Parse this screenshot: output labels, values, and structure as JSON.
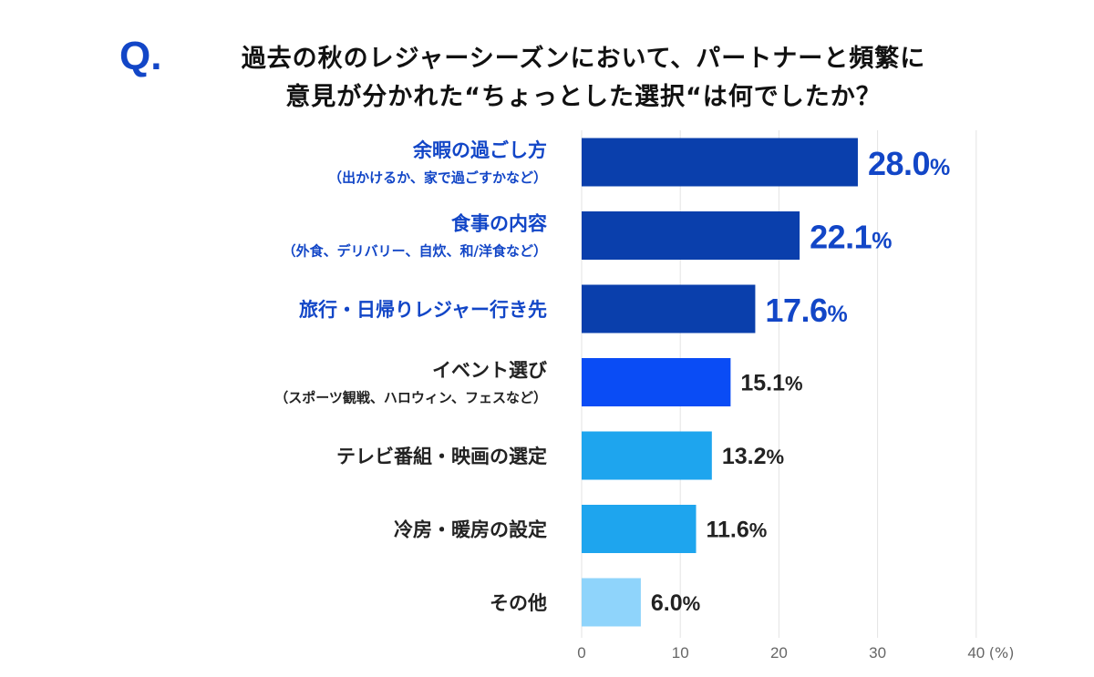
{
  "question": {
    "mark": "Q.",
    "line1": "過去の秋のレジャーシーズンにおいて、パートナーと頻繁に",
    "line2": "意見が分かれた“ちょっとした選択“は何でしたか？"
  },
  "chart_data": {
    "type": "bar",
    "orientation": "horizontal",
    "categories": [
      {
        "label": "余暇の過ごし方",
        "sub": "（出かけるか、家で過ごすかなど）",
        "highlight": true,
        "color": "#0a3fac"
      },
      {
        "label": "食事の内容",
        "sub": "（外食、デリバリー、自炊、和/洋食など）",
        "highlight": true,
        "color": "#0a3fac"
      },
      {
        "label": "旅行・日帰りレジャー行き先",
        "sub": "",
        "highlight": true,
        "color": "#0a3fac"
      },
      {
        "label": "イベント選び",
        "sub": "（スポーツ観戦、ハロウィン、フェスなど）",
        "highlight": false,
        "color": "#0a4cf5"
      },
      {
        "label": "テレビ番組・映画の選定",
        "sub": "",
        "highlight": false,
        "color": "#1ea5ee"
      },
      {
        "label": "冷房・暖房の設定",
        "sub": "",
        "highlight": false,
        "color": "#1ea5ee"
      },
      {
        "label": "その他",
        "sub": "",
        "highlight": false,
        "color": "#8fd4fb"
      }
    ],
    "values": [
      28.0,
      22.1,
      17.6,
      15.1,
      13.2,
      11.6,
      6.0
    ],
    "value_labels": [
      "28.0",
      "22.1",
      "17.6",
      "15.1",
      "13.2",
      "11.6",
      "6.0"
    ],
    "unit": "%",
    "xlim": [
      0,
      40
    ],
    "xticks": [
      "0",
      "10",
      "20",
      "30",
      "40"
    ],
    "xunit": "(%)",
    "grid": true,
    "colors": {
      "highlight_text": "#1246c7",
      "normal_text": "#222222",
      "grid": "#e3e3e3",
      "tick": "#666666"
    }
  }
}
